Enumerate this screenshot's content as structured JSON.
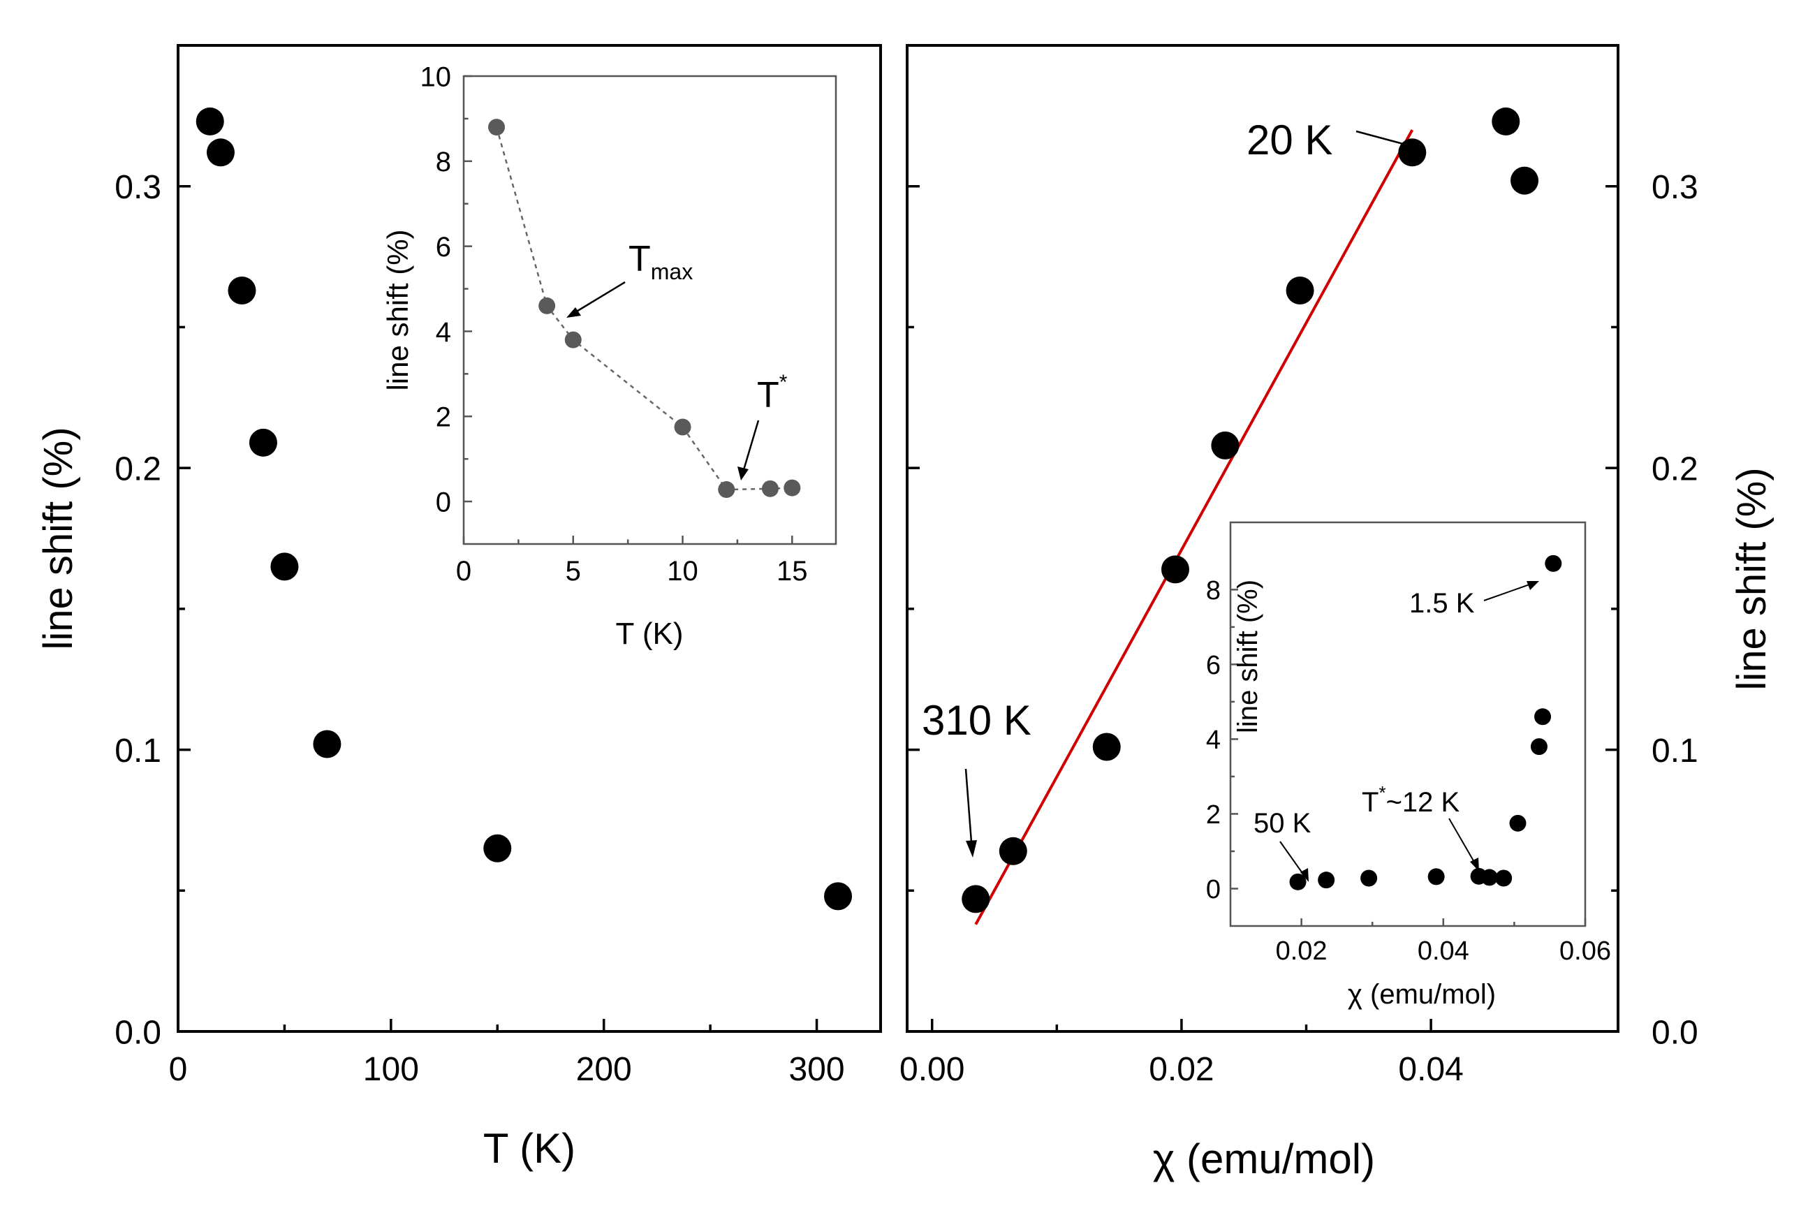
{
  "chart_data": [
    {
      "id": "left-main",
      "type": "scatter",
      "xlabel": "T (K)",
      "ylabel": "line shift (%)",
      "xlim": [
        0,
        330
      ],
      "ylim": [
        0,
        0.35
      ],
      "xticks": [
        0,
        100,
        200,
        300
      ],
      "yticks": [
        0.0,
        0.1,
        0.2,
        0.3
      ],
      "xtick_labels": [
        "0",
        "100",
        "200",
        "300"
      ],
      "ytick_labels": [
        "0.0",
        "0.1",
        "0.2",
        "0.3"
      ],
      "series": [
        {
          "name": "line shift",
          "x": [
            15,
            20,
            30,
            40,
            50,
            70,
            150,
            310
          ],
          "y": [
            0.323,
            0.312,
            0.263,
            0.209,
            0.165,
            0.102,
            0.065,
            0.048
          ]
        }
      ]
    },
    {
      "id": "left-inset",
      "type": "line",
      "xlabel": "T (K)",
      "ylabel": "line shift (%)",
      "xlim": [
        0,
        17
      ],
      "ylim": [
        -1,
        10
      ],
      "xticks": [
        0,
        5,
        10,
        15
      ],
      "yticks": [
        0,
        2,
        4,
        6,
        8,
        10
      ],
      "xtick_labels": [
        "0",
        "5",
        "10",
        "15"
      ],
      "ytick_labels": [
        "0",
        "2",
        "4",
        "6",
        "8",
        "10"
      ],
      "series": [
        {
          "name": "line shift",
          "x": [
            1.5,
            3.8,
            5,
            10,
            12,
            14,
            15
          ],
          "y": [
            8.8,
            4.6,
            3.8,
            1.75,
            0.28,
            0.3,
            0.32
          ]
        }
      ],
      "annotations": [
        {
          "text": "T",
          "sub": "max",
          "x": 4.6,
          "y": 4.1
        },
        {
          "text": "T",
          "sup": "*",
          "x": 12.4,
          "y": 0.5
        }
      ]
    },
    {
      "id": "right-main",
      "type": "scatter",
      "xlabel": "χ (emu/mol)",
      "ylabel": "line shift (%)",
      "xlim": [
        -0.002,
        0.055
      ],
      "ylim": [
        0,
        0.35
      ],
      "xticks": [
        0.0,
        0.02,
        0.04
      ],
      "yticks": [
        0.0,
        0.1,
        0.2,
        0.3
      ],
      "xtick_labels": [
        "0.00",
        "0.02",
        "0.04"
      ],
      "ytick_labels": [
        "0.0",
        "0.1",
        "0.2",
        "0.3"
      ],
      "series": [
        {
          "name": "line shift",
          "x": [
            0.0035,
            0.0065,
            0.014,
            0.0195,
            0.0235,
            0.0295,
            0.0385,
            0.046,
            0.0475
          ],
          "y": [
            0.047,
            0.064,
            0.101,
            0.164,
            0.208,
            0.263,
            0.312,
            0.323,
            0.302
          ]
        },
        {
          "name": "linear fit",
          "kind": "line",
          "x": [
            0.0035,
            0.0385
          ],
          "y": [
            0.038,
            0.32
          ]
        }
      ],
      "annotations": [
        {
          "text": "310 K",
          "x": 0.0035,
          "y": 0.047
        },
        {
          "text": "20 K",
          "x": 0.0385,
          "y": 0.312
        }
      ]
    },
    {
      "id": "right-inset",
      "type": "scatter",
      "xlabel": "χ (emu/mol)",
      "ylabel": "line shift (%)",
      "xlim": [
        0.01,
        0.06
      ],
      "ylim": [
        -1,
        9.8
      ],
      "xticks": [
        0.02,
        0.04,
        0.06
      ],
      "yticks": [
        0,
        2,
        4,
        6,
        8
      ],
      "xtick_labels": [
        "0.02",
        "0.04",
        "0.06"
      ],
      "ytick_labels": [
        "0",
        "2",
        "4",
        "6",
        "8"
      ],
      "series": [
        {
          "name": "line shift",
          "x": [
            0.0195,
            0.0235,
            0.0295,
            0.039,
            0.045,
            0.0465,
            0.0485,
            0.0505,
            0.0535,
            0.054,
            0.0555
          ],
          "y": [
            0.18,
            0.23,
            0.28,
            0.32,
            0.33,
            0.3,
            0.28,
            1.75,
            3.8,
            4.6,
            8.7
          ]
        }
      ],
      "annotations": [
        {
          "text": "50 K",
          "x": 0.0195,
          "y": 0.18
        },
        {
          "text": "T",
          "sup": "*",
          "suffix": "~12 K",
          "x": 0.0465,
          "y": 0.3
        },
        {
          "text": "1.5 K",
          "x": 0.0555,
          "y": 8.7
        }
      ]
    }
  ]
}
